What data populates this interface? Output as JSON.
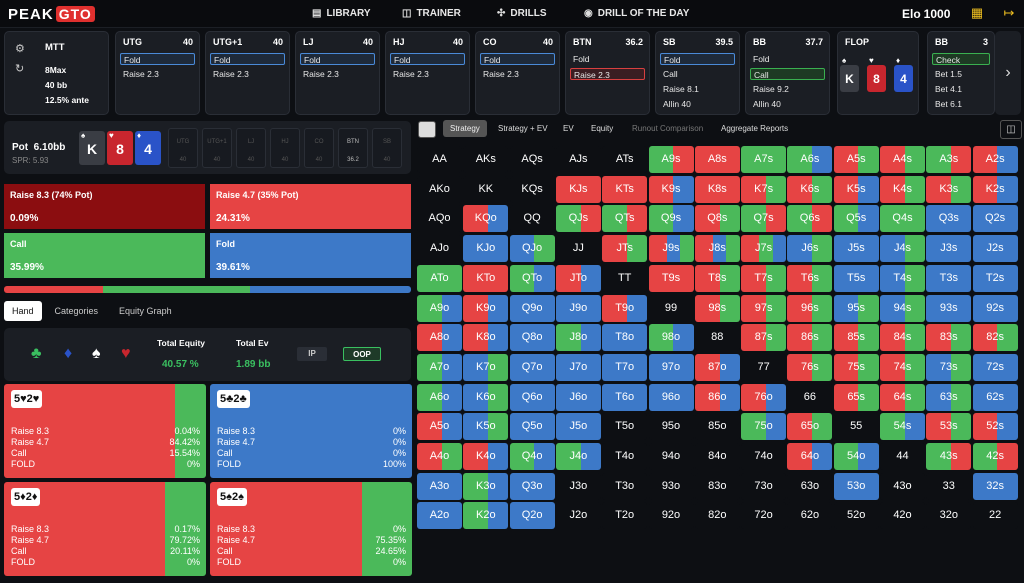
{
  "logo": {
    "text": "PEAK",
    "gto": "GTO"
  },
  "nav": {
    "library": "LIBRARY",
    "trainer": "TRAINER",
    "drills": "DRILLS",
    "drill_day": "DRILL OF THE DAY"
  },
  "elo": {
    "label": "Elo",
    "value": "1000"
  },
  "game": {
    "type": "MTT",
    "format": "8Max",
    "stack": "40 bb",
    "ante": "12.5% ante"
  },
  "positions": [
    {
      "name": "UTG",
      "stack": "40",
      "actions": [
        "Fold",
        "Raise 2.3"
      ],
      "sel": 0,
      "sel_color": "blue"
    },
    {
      "name": "UTG+1",
      "stack": "40",
      "actions": [
        "Fold",
        "Raise 2.3"
      ],
      "sel": 0,
      "sel_color": "blue"
    },
    {
      "name": "LJ",
      "stack": "40",
      "actions": [
        "Fold",
        "Raise 2.3"
      ],
      "sel": 0,
      "sel_color": "blue"
    },
    {
      "name": "HJ",
      "stack": "40",
      "actions": [
        "Fold",
        "Raise 2.3"
      ],
      "sel": 0,
      "sel_color": "blue"
    },
    {
      "name": "CO",
      "stack": "40",
      "actions": [
        "Fold",
        "Raise 2.3"
      ],
      "sel": 0,
      "sel_color": "blue"
    },
    {
      "name": "BTN",
      "stack": "36.2",
      "actions": [
        "Fold",
        "Raise 2.3"
      ],
      "sel": 1,
      "sel_color": "red"
    },
    {
      "name": "SB",
      "stack": "39.5",
      "actions": [
        "Fold",
        "Call",
        "Raise 8.1",
        "Allin 40"
      ],
      "sel": 0,
      "sel_color": "blue"
    },
    {
      "name": "BB",
      "stack": "37.7",
      "actions": [
        "Fold",
        "Call",
        "Raise 9.2",
        "Allin 40"
      ],
      "sel": 1,
      "sel_color": "green"
    },
    {
      "name": "BB",
      "stack": "3",
      "actions": [
        "Check",
        "Bet 1.5",
        "Bet 4.1",
        "Bet 6.1"
      ],
      "sel": 0,
      "sel_color": "green"
    }
  ],
  "flop": {
    "label": "FLOP",
    "cards": [
      "K",
      "8",
      "4"
    ],
    "suits": [
      "♠",
      "♥",
      "♦"
    ]
  },
  "pot": {
    "label": "Pot",
    "value": "6.10bb",
    "spr": "SPR: 5.93"
  },
  "seats": [
    {
      "n": "UTG",
      "v": "40"
    },
    {
      "n": "UTG+1",
      "v": "40"
    },
    {
      "n": "LJ",
      "v": "40"
    },
    {
      "n": "HJ",
      "v": "40"
    },
    {
      "n": "CO",
      "v": "40"
    },
    {
      "n": "BTN",
      "v": "36.2"
    },
    {
      "n": "SB",
      "v": "40"
    }
  ],
  "actions": {
    "r83": {
      "label": "Raise 8.3 (74% Pot)",
      "pct": "0.09%"
    },
    "r47": {
      "label": "Raise 4.7 (35% Pot)",
      "pct": "24.31%"
    },
    "call": {
      "label": "Call",
      "pct": "35.99%"
    },
    "fold": {
      "label": "Fold",
      "pct": "39.61%"
    }
  },
  "freq": {
    "raise_big": 0.0009,
    "raise_small": 0.2431,
    "call": 0.3599,
    "fold": 0.3961
  },
  "tabs": {
    "hand": "Hand",
    "categories": "Categories",
    "equity": "Equity Graph"
  },
  "equity": {
    "total_eq_label": "Total Equity",
    "total_eq": "40.57 %",
    "total_ev_label": "Total Ev",
    "total_ev": "1.89 bb",
    "ip": "IP",
    "oop": "OOP"
  },
  "hands": [
    {
      "cards": "5♥2♥",
      "values": [
        "0.04%",
        "84.42%",
        "15.54%",
        "0%"
      ],
      "red": 0.8446,
      "green": 0.1554,
      "blue": 0
    },
    {
      "cards": "5♣2♣",
      "values": [
        "0%",
        "0%",
        "0%",
        "100%"
      ],
      "red": 0,
      "green": 0,
      "blue": 1
    },
    {
      "cards": "5♦2♦",
      "values": [
        "0.17%",
        "79.72%",
        "20.11%",
        "0%"
      ],
      "red": 0.7989,
      "green": 0.2011,
      "blue": 0
    },
    {
      "cards": "5♠2♠",
      "values": [
        "0%",
        "75.35%",
        "24.65%",
        "0%"
      ],
      "red": 0.7535,
      "green": 0.2465,
      "blue": 0
    }
  ],
  "hand_labels": [
    "Raise 8.3",
    "Raise 4.7",
    "Call",
    "FOLD"
  ],
  "rtabs": {
    "strategy": "Strategy",
    "strat_ev": "Strategy + EV",
    "ev": "EV",
    "equity": "Equity",
    "runout": "Runout Comparison",
    "agg": "Aggregate Reports"
  },
  "colors": {
    "red": "#e64444",
    "green": "#4bb95a",
    "blue": "#3d79c8",
    "darkred": "#8b0d10"
  },
  "matrix": [
    [
      "AA",
      "AKs",
      "AQs",
      "AJs",
      "ATs",
      "A9s",
      "A8s",
      "A7s",
      "A6s",
      "A5s",
      "A4s",
      "A3s",
      "A2s"
    ],
    [
      "AKo",
      "KK",
      "KQs",
      "KJs",
      "KTs",
      "K9s",
      "K8s",
      "K7s",
      "K6s",
      "K5s",
      "K4s",
      "K3s",
      "K2s"
    ],
    [
      "AQo",
      "KQo",
      "QQ",
      "QJs",
      "QTs",
      "Q9s",
      "Q8s",
      "Q7s",
      "Q6s",
      "Q5s",
      "Q4s",
      "Q3s",
      "Q2s"
    ],
    [
      "AJo",
      "KJo",
      "QJo",
      "JJ",
      "JTs",
      "J9s",
      "J8s",
      "J7s",
      "J6s",
      "J5s",
      "J4s",
      "J3s",
      "J2s"
    ],
    [
      "ATo",
      "KTo",
      "QTo",
      "JTo",
      "TT",
      "T9s",
      "T8s",
      "T7s",
      "T6s",
      "T5s",
      "T4s",
      "T3s",
      "T2s"
    ],
    [
      "A9o",
      "K9o",
      "Q9o",
      "J9o",
      "T9o",
      "99",
      "98s",
      "97s",
      "96s",
      "95s",
      "94s",
      "93s",
      "92s"
    ],
    [
      "A8o",
      "K8o",
      "Q8o",
      "J8o",
      "T8o",
      "98o",
      "88",
      "87s",
      "86s",
      "85s",
      "84s",
      "83s",
      "82s"
    ],
    [
      "A7o",
      "K7o",
      "Q7o",
      "J7o",
      "T7o",
      "97o",
      "87o",
      "77",
      "76s",
      "75s",
      "74s",
      "73s",
      "72s"
    ],
    [
      "A6o",
      "K6o",
      "Q6o",
      "J6o",
      "T6o",
      "96o",
      "86o",
      "76o",
      "66",
      "65s",
      "64s",
      "63s",
      "62s"
    ],
    [
      "A5o",
      "K5o",
      "Q5o",
      "J5o",
      "T5o",
      "95o",
      "85o",
      "75o",
      "65o",
      "55",
      "54s",
      "53s",
      "52s"
    ],
    [
      "A4o",
      "K4o",
      "Q4o",
      "J4o",
      "T4o",
      "94o",
      "84o",
      "74o",
      "64o",
      "54o",
      "44",
      "43s",
      "42s"
    ],
    [
      "A3o",
      "K3o",
      "Q3o",
      "J3o",
      "T3o",
      "93o",
      "83o",
      "73o",
      "63o",
      "53o",
      "43o",
      "33",
      "32s"
    ],
    [
      "A2o",
      "K2o",
      "Q2o",
      "J2o",
      "T2o",
      "92o",
      "82o",
      "72o",
      "62o",
      "52o",
      "42o",
      "32o",
      "22"
    ]
  ],
  "matrix_mix": [
    [
      "",
      "",
      "",
      "",
      "",
      "gr",
      "r",
      "g",
      "gb",
      "rg",
      "rg",
      "gr",
      "rb"
    ],
    [
      "",
      "",
      "",
      "r",
      "r",
      "rb",
      "r",
      "rg",
      "rg",
      "rb",
      "rg",
      "rg",
      "rb"
    ],
    [
      "",
      "rb",
      "",
      "gr",
      "gr",
      "gb",
      "rg",
      "gr",
      "gr",
      "gb",
      "g",
      "b",
      "b"
    ],
    [
      "",
      "b",
      "bg",
      "",
      "rg",
      "rbg",
      "rbg",
      "rgb",
      "bg",
      "b",
      "bg",
      "b",
      "b"
    ],
    [
      "g",
      "r",
      "gb",
      "rb",
      "",
      "r",
      "rg",
      "rg",
      "rg",
      "b",
      "bg",
      "b",
      "b"
    ],
    [
      "gb",
      "rb",
      "b",
      "b",
      "rb",
      "",
      "rg",
      "rg",
      "rg",
      "bg",
      "bg",
      "b",
      "b"
    ],
    [
      "rb",
      "rb",
      "b",
      "gb",
      "b",
      "gb",
      "",
      "rg",
      "rg",
      "rg",
      "rg",
      "rg",
      "rg"
    ],
    [
      "gb",
      "bg",
      "b",
      "b",
      "b",
      "b",
      "rb",
      "",
      "rg",
      "rg",
      "rg",
      "bg",
      "b"
    ],
    [
      "gb",
      "bg",
      "b",
      "b",
      "b",
      "b",
      "rb",
      "rb",
      "",
      "rg",
      "rg",
      "bg",
      "b"
    ],
    [
      "rb",
      "bg",
      "b",
      "b",
      "",
      "",
      "",
      "gb",
      "rg",
      "",
      "gb",
      "rg",
      "rb"
    ],
    [
      "rg",
      "rb",
      "gb",
      "gb",
      "",
      "",
      "",
      "",
      "rb",
      "gb",
      "",
      "gr",
      "gr"
    ],
    [
      "b",
      "gb",
      "b",
      "",
      "",
      "",
      "",
      "",
      "",
      "b",
      "",
      "",
      "b"
    ],
    [
      "b",
      "gb",
      "b",
      "",
      "",
      "",
      "",
      "",
      "",
      "",
      "",
      "",
      ""
    ]
  ]
}
